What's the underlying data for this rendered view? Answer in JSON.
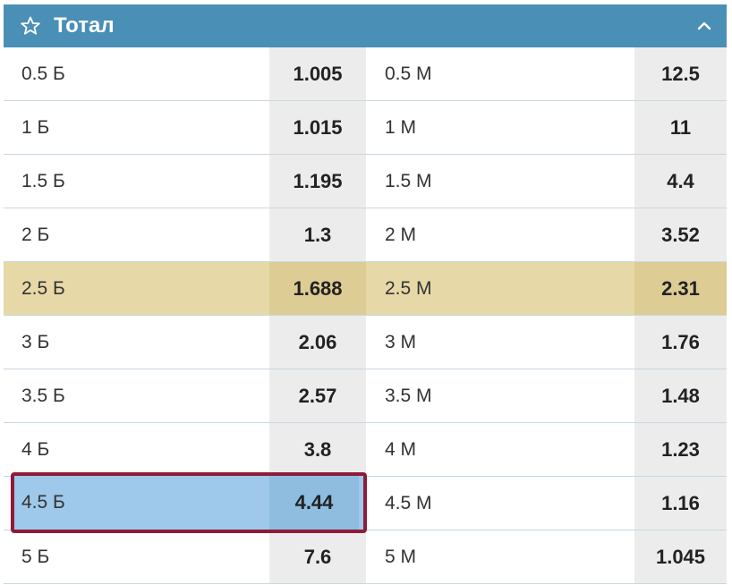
{
  "header": {
    "title": "Тотал",
    "star_icon": "star-outline-icon",
    "collapse_icon": "chevron-up-icon"
  },
  "rows": [
    {
      "over_label": "0.5 Б",
      "over_odd": "1.005",
      "under_label": "0.5 М",
      "under_odd": "12.5"
    },
    {
      "over_label": "1 Б",
      "over_odd": "1.015",
      "under_label": "1 М",
      "under_odd": "11"
    },
    {
      "over_label": "1.5 Б",
      "over_odd": "1.195",
      "under_label": "1.5 М",
      "under_odd": "4.4"
    },
    {
      "over_label": "2 Б",
      "over_odd": "1.3",
      "under_label": "2 М",
      "under_odd": "3.52"
    },
    {
      "over_label": "2.5 Б",
      "over_odd": "1.688",
      "under_label": "2.5 М",
      "under_odd": "2.31",
      "highlighted": true
    },
    {
      "over_label": "3 Б",
      "over_odd": "2.06",
      "under_label": "3 М",
      "under_odd": "1.76"
    },
    {
      "over_label": "3.5 Б",
      "over_odd": "2.57",
      "under_label": "3.5 М",
      "under_odd": "1.48"
    },
    {
      "over_label": "4 Б",
      "over_odd": "3.8",
      "under_label": "4 М",
      "under_odd": "1.23"
    },
    {
      "over_label": "4.5 Б",
      "over_odd": "4.44",
      "under_label": "4.5 М",
      "under_odd": "1.16",
      "selected": "over"
    },
    {
      "over_label": "5 Б",
      "over_odd": "7.6",
      "under_label": "5 М",
      "under_odd": "1.045"
    }
  ],
  "colors": {
    "header": "#4a8fb5",
    "highlight": "#e6d9a7",
    "selected": "#9ec9ea",
    "selected_border": "#8e1b3a"
  }
}
